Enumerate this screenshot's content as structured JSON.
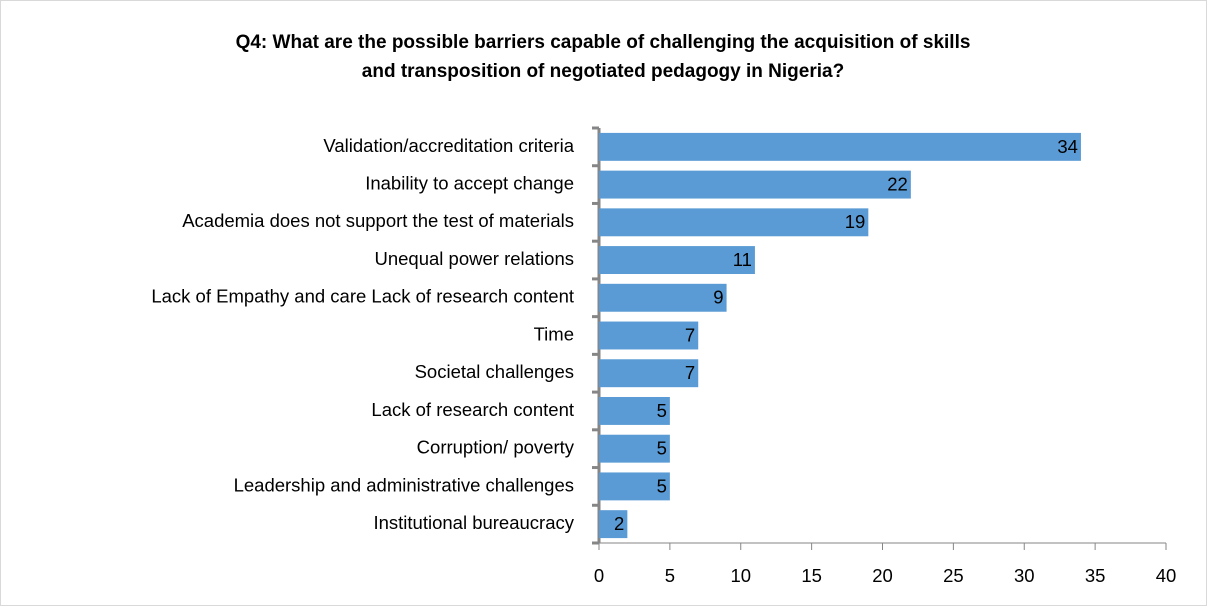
{
  "chart_data": {
    "type": "bar",
    "orientation": "horizontal",
    "title": [
      "Q4: What are the possible barriers capable of challenging the acquisition of skills",
      "and transposition of negotiated pedagogy in Nigeria?"
    ],
    "categories": [
      "Validation/accreditation criteria",
      "Inability to accept change",
      "Academia does not support the test of materials",
      "Unequal power relations",
      "Lack of Empathy and care Lack of research content",
      "Time",
      "Societal challenges",
      "Lack of research content",
      "Corruption/ poverty",
      "Leadership and administrative challenges",
      "Institutional bureaucracy"
    ],
    "values": [
      34,
      22,
      19,
      11,
      9,
      7,
      7,
      5,
      5,
      5,
      2
    ],
    "color": "#5b9bd5",
    "xlim": [
      0,
      40
    ],
    "xticks": [
      0,
      5,
      10,
      15,
      20,
      25,
      30,
      35,
      40
    ],
    "grid": false
  }
}
